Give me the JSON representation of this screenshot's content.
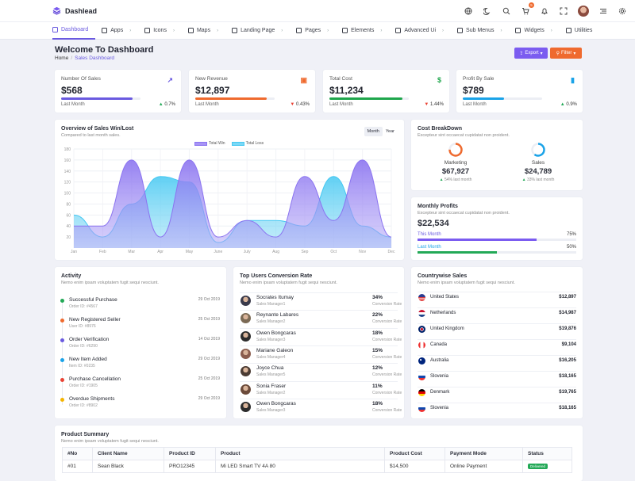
{
  "app": {
    "name": "Dashlead",
    "notification_count": "5"
  },
  "nav": [
    {
      "label": "Dashboard",
      "icon": "monitor-icon"
    },
    {
      "label": "Apps",
      "icon": "layers-icon"
    },
    {
      "label": "Icons",
      "icon": "lightbulb-icon"
    },
    {
      "label": "Maps",
      "icon": "map-pin-icon"
    },
    {
      "label": "Landing Page",
      "icon": "rocket-icon"
    },
    {
      "label": "Pages",
      "icon": "compass-icon"
    },
    {
      "label": "Elements",
      "icon": "stack-icon"
    },
    {
      "label": "Advanced Ui",
      "icon": "box-icon"
    },
    {
      "label": "Sub Menus",
      "icon": "book-icon"
    },
    {
      "label": "Widgets",
      "icon": "database-icon"
    },
    {
      "label": "Utilities",
      "icon": "sliders-icon"
    }
  ],
  "header": {
    "title": "Welcome To Dashboard",
    "breadcrumb_home": "Home",
    "breadcrumb_current": "Sales Dashboard",
    "export_label": "Export",
    "filter_label": "Filter"
  },
  "stats": [
    {
      "label": "Number Of Sales",
      "value": "$568",
      "period": "Last Month",
      "change": "0.7%",
      "dir": "up",
      "color": "#6a5ae0",
      "progress": 0.9,
      "icon": "chart-line-icon",
      "icon_glyph": "↗"
    },
    {
      "label": "New Revenue",
      "value": "$12,897",
      "period": "Last Month",
      "change": "0.43%",
      "dir": "down",
      "color": "#ef6a2e",
      "progress": 0.9,
      "icon": "money-icon",
      "icon_glyph": "▣"
    },
    {
      "label": "Total Cost",
      "value": "$11,234",
      "period": "Last Month",
      "change": "1.44%",
      "dir": "down",
      "color": "#1fa64c",
      "progress": 0.92,
      "icon": "dollar-icon",
      "icon_glyph": "$"
    },
    {
      "label": "Profit By Sale",
      "value": "$789",
      "period": "Last Month",
      "change": "0.9%",
      "dir": "up",
      "color": "#1aa3e8",
      "progress": 0.52,
      "icon": "signal-icon",
      "icon_glyph": "▮"
    }
  ],
  "overview": {
    "title": "Overview of Sales Win/Lost",
    "subtitle": "Compared to last month sales.",
    "toggle_month": "Month",
    "toggle_year": "Year"
  },
  "chart_data": {
    "type": "area",
    "categories": [
      "Jan",
      "Feb",
      "Mar",
      "Apr",
      "May",
      "June",
      "July",
      "Aug",
      "Sep",
      "Oct",
      "Nov",
      "Dec"
    ],
    "series": [
      {
        "name": "Total Win",
        "values": [
          40,
          40,
          160,
          20,
          160,
          20,
          50,
          20,
          130,
          50,
          160,
          20
        ],
        "color": "#8b74f0"
      },
      {
        "name": "Total Loss",
        "values": [
          60,
          20,
          80,
          130,
          120,
          10,
          50,
          50,
          40,
          130,
          40,
          20
        ],
        "color": "#45c8f2"
      }
    ],
    "yticks": [
      "180",
      "160",
      "140",
      "120",
      "100",
      "80",
      "60",
      "40",
      "20"
    ],
    "ylim": [
      0,
      180
    ]
  },
  "cost_breakdown": {
    "title": "Cost BreakDown",
    "subtitle": "Excepteur sint occaecat cupidatat non proident.",
    "items": [
      {
        "label": "Marketing",
        "value": "$67,927",
        "change": "54% last month",
        "color": "#ef6a2e",
        "fraction": 0.54
      },
      {
        "label": "Sales",
        "value": "$24,789",
        "change": "33% last month",
        "color": "#1aa3e8",
        "fraction": 0.33
      }
    ]
  },
  "profits": {
    "title": "Monthly Profits",
    "subtitle": "Excepteur sint occaecat cupidatat non proident.",
    "value": "$22,534",
    "this_month_label": "This Month",
    "this_month_pct": "75%",
    "this_month_fraction": 0.75,
    "last_month_label": "Last Month",
    "last_month_pct": "50%",
    "last_month_fraction": 0.5
  },
  "activity": {
    "title": "Activity",
    "subtitle": "Nemo enim ipsam voluptatem fugit sequi nesciunt.",
    "items": [
      {
        "name": "Successful Purchase",
        "sub": "Order ID: #4567",
        "date": "29 Oct 2019",
        "color": "#23a957"
      },
      {
        "name": "New Registered Seller",
        "sub": "User ID: #8976",
        "date": "25 Oct 2019",
        "color": "#ef6a2e"
      },
      {
        "name": "Order Verification",
        "sub": "Order ID: #6290",
        "date": "14 Oct 2019",
        "color": "#6a5ae0"
      },
      {
        "name": "New Item Added",
        "sub": "Item ID: #0235",
        "date": "29 Oct 2019",
        "color": "#1aa3e8"
      },
      {
        "name": "Purchase Cancellation",
        "sub": "Order ID: #1905",
        "date": "25 Oct 2019",
        "color": "#ea4335"
      },
      {
        "name": "Overdue Shipments",
        "sub": "Order ID: #8902",
        "date": "29 Oct 2019",
        "color": "#f5b400"
      }
    ]
  },
  "users": {
    "title": "Top Users Conversion Rate",
    "subtitle": "Nemo enim ipsam voluptatem fugit sequi nesciunt.",
    "items": [
      {
        "name": "Socrates Itumay",
        "role": "Sales Manager1",
        "pct": "34%",
        "rate": "Conversion Rate"
      },
      {
        "name": "Reynante Labares",
        "role": "Sales Manager2",
        "pct": "22%",
        "rate": "Conversion Rate"
      },
      {
        "name": "Owen Bongcaras",
        "role": "Sales Manager3",
        "pct": "18%",
        "rate": "Conversion Rate"
      },
      {
        "name": "Mariane Galeon",
        "role": "Sales Manager4",
        "pct": "15%",
        "rate": "Conversion Rate"
      },
      {
        "name": "Joyce Chua",
        "role": "Sales Manager5",
        "pct": "12%",
        "rate": "Conversion Rate"
      },
      {
        "name": "Sonia Fraser",
        "role": "Sales Manager2",
        "pct": "11%",
        "rate": "Conversion Rate"
      },
      {
        "name": "Owen Bongcaras",
        "role": "Sales Manager3",
        "pct": "18%",
        "rate": "Conversion Rate"
      }
    ]
  },
  "countries": {
    "title": "Countrywise Sales",
    "subtitle": "Nemo enim ipsam voluptatem fugit sequi nesciunt.",
    "items": [
      {
        "name": "United States",
        "value": "$12,897"
      },
      {
        "name": "Netherlands",
        "value": "$14,987"
      },
      {
        "name": "United Kingdom",
        "value": "$19,876"
      },
      {
        "name": "Canada",
        "value": "$9,104"
      },
      {
        "name": "Australia",
        "value": "$16,205"
      },
      {
        "name": "Slovenia",
        "value": "$18,165"
      },
      {
        "name": "Denmark",
        "value": "$19,765"
      },
      {
        "name": "Slovenia",
        "value": "$18,165"
      }
    ]
  },
  "product_summary": {
    "title": "Product Summary",
    "subtitle": "Nemo enim ipsam voluptatem fugit sequi nesciunt.",
    "columns": [
      "#No",
      "Client Name",
      "Product ID",
      "Product",
      "Product Cost",
      "Payment Mode",
      "Status"
    ],
    "rows": [
      [
        "#01",
        "Sean Black",
        "PRO12345",
        "Mi LED Smart TV 4A 80",
        "$14,500",
        "Online Payment",
        "Delivered"
      ]
    ]
  }
}
